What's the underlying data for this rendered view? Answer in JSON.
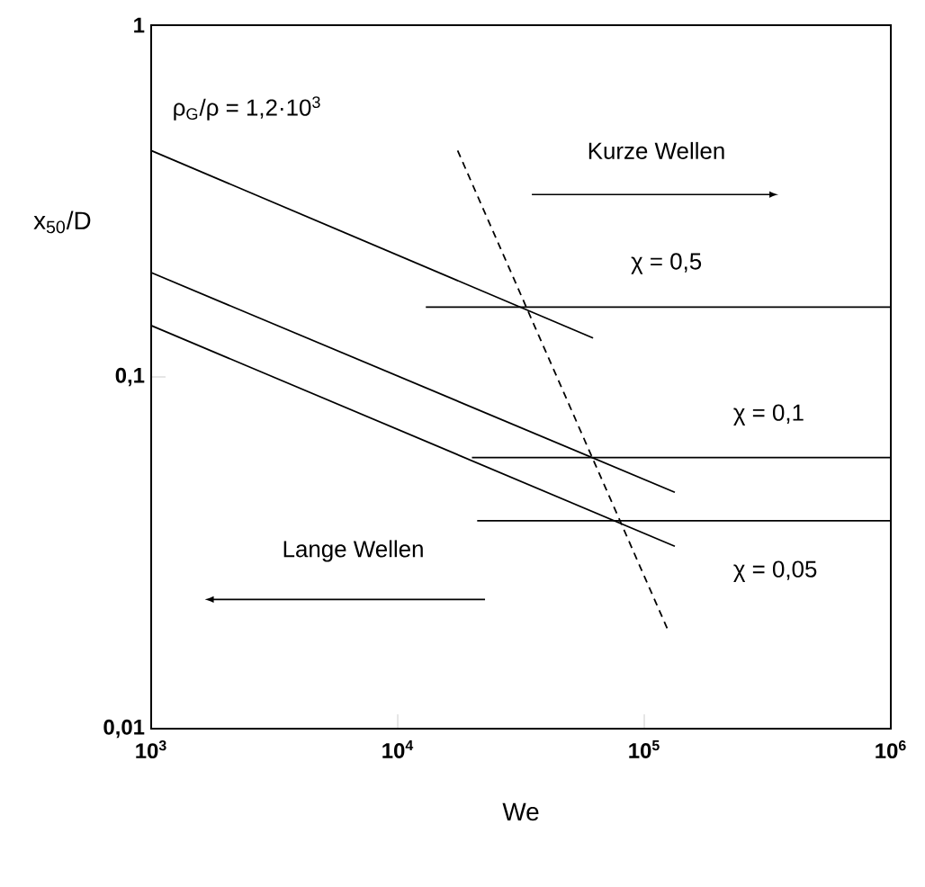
{
  "chart_data": {
    "type": "line",
    "xlabel": "We",
    "ylabel": "x$_{50}$/D",
    "log": "xy",
    "marker": "none",
    "xlim": [
      1000,
      1000000
    ],
    "ylim": [
      0.01,
      1
    ],
    "xticks": [
      {
        "value": 1000,
        "label": "10$^{3}$"
      },
      {
        "value": 10000,
        "label": "10$^{4}$"
      },
      {
        "value": 100000,
        "label": "10$^{5}$"
      },
      {
        "value": 1000000,
        "label": "10$^{6}$"
      }
    ],
    "yticks": [
      {
        "value": 0.01,
        "label": "0,01"
      },
      {
        "value": 0.1,
        "label": "0,1"
      },
      {
        "value": 1,
        "label": "1"
      }
    ],
    "series": [
      {
        "color": "#000000",
        "x": [
          1000,
          62000
        ],
        "values": [
          0.44,
          0.129
        ]
      },
      {
        "color": "#000000",
        "x": [
          1000,
          133000
        ],
        "values": [
          0.198,
          0.047
        ]
      },
      {
        "color": "#000000",
        "x": [
          1000,
          133000
        ],
        "values": [
          0.14,
          0.033
        ]
      },
      {
        "color": "#000000",
        "x": [
          13000,
          1000000
        ],
        "values": [
          0.158,
          0.158
        ]
      },
      {
        "color": "#000000",
        "x": [
          20000,
          1000000
        ],
        "values": [
          0.059,
          0.059
        ]
      },
      {
        "color": "#000000",
        "x": [
          21000,
          1000000
        ],
        "values": [
          0.039,
          0.039
        ]
      },
      {
        "color": "#000000",
        "line_style": "dashed",
        "x": [
          17500,
          125000
        ],
        "values": [
          0.44,
          0.019
        ]
      }
    ],
    "annotations": [
      "ρ$_{G}$/ρ = 1,2·10$^{3}$",
      "Kurze Wellen",
      "Lange Wellen",
      "χ = 0,5",
      "χ = 0,1",
      "χ = 0,05"
    ]
  }
}
